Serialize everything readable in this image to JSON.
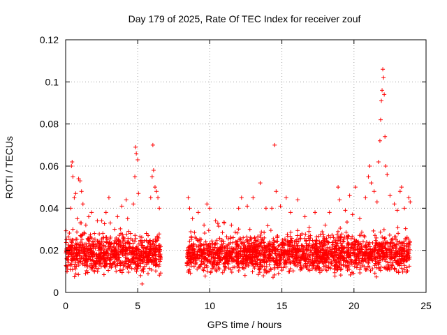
{
  "chart_data": {
    "type": "scatter",
    "title": "Day 179 of 2025, Rate Of TEC Index for receiver zouf",
    "xlabel": "GPS time / hours",
    "ylabel": "ROTI / TECUs",
    "xlim": [
      0,
      25
    ],
    "ylim": [
      0,
      0.12
    ],
    "x_ticks": [
      0,
      5,
      10,
      15,
      20,
      25
    ],
    "x_tick_labels": [
      "0",
      "5",
      "10",
      "15",
      "20",
      "25"
    ],
    "y_ticks": [
      0,
      0.02,
      0.04,
      0.06,
      0.08,
      0.1,
      0.12
    ],
    "y_tick_labels": [
      "0",
      "0.02",
      "0.04",
      "0.06",
      "0.08",
      "0.1",
      "0.12"
    ],
    "grid": true,
    "marker": "+",
    "color": "#ff0000",
    "series": [
      {
        "name": "ROTI",
        "points": [
          [
            0.1,
            0.01
          ],
          [
            0.2,
            0.018
          ],
          [
            0.3,
            0.025
          ],
          [
            0.35,
            0.04
          ],
          [
            0.4,
            0.06
          ],
          [
            0.45,
            0.062
          ],
          [
            0.5,
            0.055
          ],
          [
            0.5,
            0.03
          ],
          [
            0.6,
            0.045
          ],
          [
            0.7,
            0.047
          ],
          [
            0.8,
            0.035
          ],
          [
            0.9,
            0.054
          ],
          [
            1.0,
            0.053
          ],
          [
            1.1,
            0.048
          ],
          [
            1.2,
            0.042
          ],
          [
            1.4,
            0.032
          ],
          [
            1.6,
            0.036
          ],
          [
            1.8,
            0.038
          ],
          [
            2.0,
            0.028
          ],
          [
            2.2,
            0.034
          ],
          [
            2.5,
            0.034
          ],
          [
            2.8,
            0.038
          ],
          [
            3.0,
            0.045
          ],
          [
            3.1,
            0.033
          ],
          [
            3.4,
            0.03
          ],
          [
            3.6,
            0.036
          ],
          [
            3.9,
            0.041
          ],
          [
            4.2,
            0.044
          ],
          [
            4.3,
            0.035
          ],
          [
            4.5,
            0.028
          ],
          [
            4.7,
            0.042
          ],
          [
            4.8,
            0.055
          ],
          [
            4.85,
            0.069
          ],
          [
            4.9,
            0.066
          ],
          [
            5.0,
            0.063
          ],
          [
            5.05,
            0.047
          ],
          [
            5.2,
            0.008
          ],
          [
            5.3,
            0.004
          ],
          [
            5.4,
            0.01
          ],
          [
            5.6,
            0.028
          ],
          [
            5.9,
            0.045
          ],
          [
            6.0,
            0.055
          ],
          [
            6.05,
            0.07
          ],
          [
            6.1,
            0.058
          ],
          [
            6.2,
            0.05
          ],
          [
            6.3,
            0.048
          ],
          [
            6.4,
            0.045
          ],
          [
            6.5,
            0.04
          ],
          [
            8.5,
            0.045
          ],
          [
            8.6,
            0.04
          ],
          [
            8.8,
            0.035
          ],
          [
            9.2,
            0.038
          ],
          [
            9.6,
            0.032
          ],
          [
            9.8,
            0.042
          ],
          [
            10.0,
            0.04
          ],
          [
            10.4,
            0.034
          ],
          [
            11.0,
            0.033
          ],
          [
            11.5,
            0.032
          ],
          [
            12.0,
            0.04
          ],
          [
            12.2,
            0.045
          ],
          [
            12.6,
            0.041
          ],
          [
            13.0,
            0.045
          ],
          [
            13.5,
            0.052
          ],
          [
            13.9,
            0.04
          ],
          [
            14.3,
            0.04
          ],
          [
            14.5,
            0.07
          ],
          [
            14.6,
            0.048
          ],
          [
            14.9,
            0.041
          ],
          [
            15.3,
            0.045
          ],
          [
            15.6,
            0.038
          ],
          [
            16.1,
            0.044
          ],
          [
            16.6,
            0.036
          ],
          [
            17.3,
            0.038
          ],
          [
            18.0,
            0.032
          ],
          [
            18.3,
            0.038
          ],
          [
            18.9,
            0.05
          ],
          [
            19.0,
            0.044
          ],
          [
            19.4,
            0.039
          ],
          [
            19.7,
            0.046
          ],
          [
            19.9,
            0.037
          ],
          [
            20.1,
            0.05
          ],
          [
            20.4,
            0.035
          ],
          [
            20.8,
            0.045
          ],
          [
            21.0,
            0.055
          ],
          [
            21.1,
            0.06
          ],
          [
            21.2,
            0.052
          ],
          [
            21.4,
            0.048
          ],
          [
            21.6,
            0.043
          ],
          [
            21.7,
            0.062
          ],
          [
            21.8,
            0.072
          ],
          [
            21.85,
            0.082
          ],
          [
            21.9,
            0.091
          ],
          [
            21.95,
            0.096
          ],
          [
            22.0,
            0.106
          ],
          [
            22.05,
            0.102
          ],
          [
            22.1,
            0.094
          ],
          [
            22.15,
            0.074
          ],
          [
            22.2,
            0.06
          ],
          [
            22.3,
            0.056
          ],
          [
            22.5,
            0.046
          ],
          [
            22.8,
            0.042
          ],
          [
            23.0,
            0.039
          ],
          [
            23.2,
            0.048
          ],
          [
            23.3,
            0.05
          ],
          [
            23.5,
            0.04
          ],
          [
            23.8,
            0.045
          ],
          [
            23.9,
            0.043
          ]
        ]
      }
    ],
    "dense_band": [
      {
        "x_start": 0.0,
        "x_end": 6.6,
        "y_low": 0.006,
        "y_high": 0.03
      },
      {
        "x_start": 8.4,
        "x_end": 23.9,
        "y_low": 0.006,
        "y_high": 0.03
      }
    ],
    "data_gap": [
      6.7,
      8.3
    ]
  }
}
